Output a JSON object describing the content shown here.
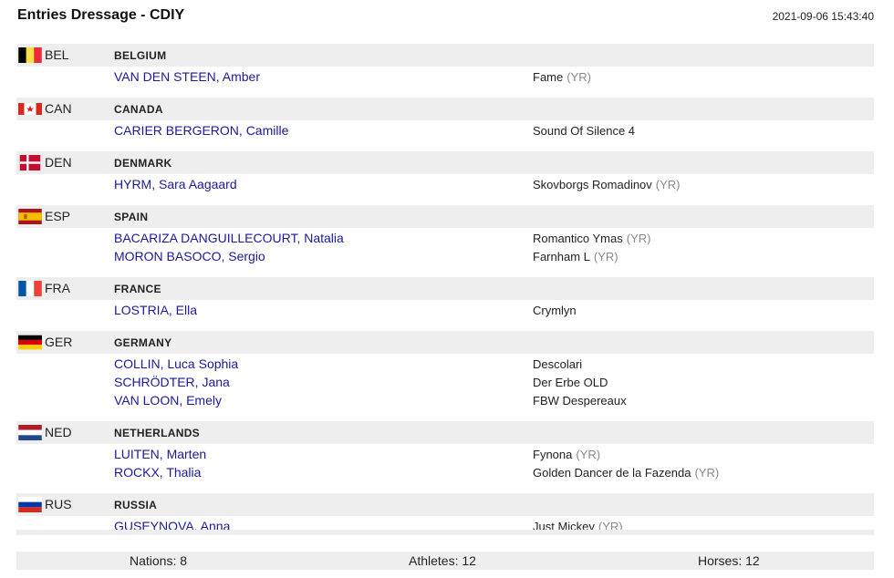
{
  "header": {
    "title": "Entries Dressage - CDIY",
    "timestamp": "2021-09-06 15:43:40"
  },
  "nations": [
    {
      "code": "BEL",
      "name": "BELGIUM",
      "flag": "belgium-flag",
      "entries": [
        {
          "athlete": "VAN DEN STEEN, Amber",
          "horse": "Fame",
          "yr": "(YR)"
        }
      ]
    },
    {
      "code": "CAN",
      "name": "CANADA",
      "flag": "canada-flag",
      "entries": [
        {
          "athlete": "CARIER BERGERON, Camille",
          "horse": "Sound Of Silence 4",
          "yr": ""
        }
      ]
    },
    {
      "code": "DEN",
      "name": "DENMARK",
      "flag": "denmark-flag",
      "entries": [
        {
          "athlete": "HYRM, Sara Aagaard",
          "horse": "Skovborgs Romadinov",
          "yr": "(YR)"
        }
      ]
    },
    {
      "code": "ESP",
      "name": "SPAIN",
      "flag": "spain-flag",
      "entries": [
        {
          "athlete": "BACARIZA DANGUILLECOURT, Natalia",
          "horse": "Romantico Ymas",
          "yr": "(YR)"
        },
        {
          "athlete": "MORON BASOCO, Sergio",
          "horse": "Farnham L",
          "yr": "(YR)"
        }
      ]
    },
    {
      "code": "FRA",
      "name": "FRANCE",
      "flag": "france-flag",
      "entries": [
        {
          "athlete": "LOSTRIA, Ella",
          "horse": "Crymlyn",
          "yr": ""
        }
      ]
    },
    {
      "code": "GER",
      "name": "GERMANY",
      "flag": "germany-flag",
      "entries": [
        {
          "athlete": "COLLIN, Luca Sophia",
          "horse": "Descolari",
          "yr": ""
        },
        {
          "athlete": "SCHRÖDTER, Jana",
          "horse": "Der Erbe OLD",
          "yr": ""
        },
        {
          "athlete": "VAN LOON, Emely",
          "horse": "FBW Despereaux",
          "yr": ""
        }
      ]
    },
    {
      "code": "NED",
      "name": "NETHERLANDS",
      "flag": "netherlands-flag",
      "entries": [
        {
          "athlete": "LUITEN, Marten",
          "horse": "Fynona",
          "yr": "(YR)"
        },
        {
          "athlete": "ROCKX, Thalia",
          "horse": "Golden Dancer de la Fazenda",
          "yr": "(YR)"
        }
      ]
    },
    {
      "code": "RUS",
      "name": "RUSSIA",
      "flag": "russia-flag",
      "entries": [
        {
          "athlete": "GUSEYNOVA, Anna",
          "horse": "Just Mickey",
          "yr": "(YR)"
        }
      ]
    }
  ],
  "footer": {
    "nations": "Nations: 8",
    "athletes": "Athletes: 12",
    "horses": "Horses: 12"
  }
}
